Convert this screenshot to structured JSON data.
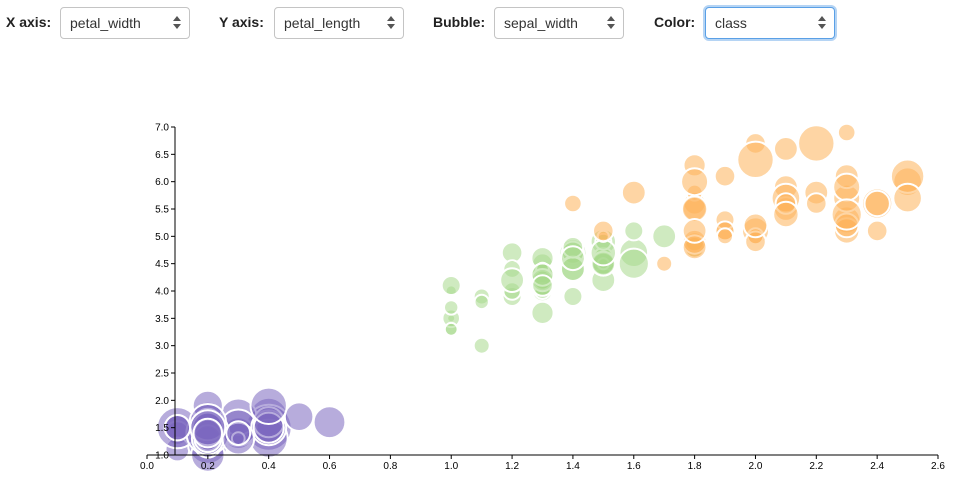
{
  "controls": {
    "x_axis": {
      "label": "X axis:",
      "value": "petal_width"
    },
    "y_axis": {
      "label": "Y axis:",
      "value": "petal_length"
    },
    "bubble": {
      "label": "Bubble:",
      "value": "sepal_width"
    },
    "color": {
      "label": "Color:",
      "value": "class"
    }
  },
  "colors": {
    "setosa": "#7b68c0",
    "versicolor": "#a8d98c",
    "virginica": "#fdb35a",
    "point_stroke": "#ffffff"
  },
  "chart_data": {
    "type": "scatter",
    "title": "",
    "xlabel": "",
    "ylabel": "",
    "xlim": [
      0,
      2.6
    ],
    "ylim": [
      1.0,
      7.0
    ],
    "x_ticks": [
      "0.0",
      "0.2",
      "0.4",
      "0.6",
      "0.8",
      "1.0",
      "1.2",
      "1.4",
      "1.6",
      "1.8",
      "2.0",
      "2.2",
      "2.4",
      "2.6"
    ],
    "y_ticks": [
      "1.0",
      "1.5",
      "2.0",
      "2.5",
      "3.0",
      "3.5",
      "4.0",
      "4.5",
      "5.0",
      "5.5",
      "6.0",
      "6.5",
      "7.0"
    ],
    "grid": false,
    "size_range": [
      2.0,
      4.4
    ],
    "series": [
      {
        "color_key": "setosa",
        "points": [
          [
            0.2,
            1.4,
            3.5
          ],
          [
            0.2,
            1.4,
            3.0
          ],
          [
            0.2,
            1.3,
            3.2
          ],
          [
            0.2,
            1.5,
            3.1
          ],
          [
            0.2,
            1.4,
            3.6
          ],
          [
            0.4,
            1.7,
            3.9
          ],
          [
            0.3,
            1.4,
            3.4
          ],
          [
            0.2,
            1.5,
            3.4
          ],
          [
            0.2,
            1.4,
            2.9
          ],
          [
            0.1,
            1.5,
            3.1
          ],
          [
            0.2,
            1.5,
            3.7
          ],
          [
            0.2,
            1.6,
            3.4
          ],
          [
            0.1,
            1.4,
            3.0
          ],
          [
            0.1,
            1.1,
            3.0
          ],
          [
            0.2,
            1.2,
            4.0
          ],
          [
            0.4,
            1.5,
            4.4
          ],
          [
            0.4,
            1.3,
            3.9
          ],
          [
            0.3,
            1.4,
            3.5
          ],
          [
            0.3,
            1.7,
            3.8
          ],
          [
            0.3,
            1.5,
            3.8
          ],
          [
            0.2,
            1.7,
            3.4
          ],
          [
            0.4,
            1.5,
            3.7
          ],
          [
            0.2,
            1.0,
            3.6
          ],
          [
            0.5,
            1.7,
            3.3
          ],
          [
            0.2,
            1.9,
            3.4
          ],
          [
            0.2,
            1.6,
            3.0
          ],
          [
            0.4,
            1.6,
            3.4
          ],
          [
            0.2,
            1.5,
            3.5
          ],
          [
            0.2,
            1.4,
            3.4
          ],
          [
            0.2,
            1.6,
            3.2
          ],
          [
            0.2,
            1.6,
            3.1
          ],
          [
            0.4,
            1.5,
            3.4
          ],
          [
            0.1,
            1.5,
            4.1
          ],
          [
            0.2,
            1.4,
            4.2
          ],
          [
            0.1,
            1.5,
            3.1
          ],
          [
            0.2,
            1.2,
            3.2
          ],
          [
            0.2,
            1.3,
            3.5
          ],
          [
            0.1,
            1.5,
            3.1
          ],
          [
            0.2,
            1.3,
            3.0
          ],
          [
            0.2,
            1.5,
            3.4
          ],
          [
            0.3,
            1.3,
            3.5
          ],
          [
            0.3,
            1.3,
            2.3
          ],
          [
            0.2,
            1.3,
            3.2
          ],
          [
            0.6,
            1.6,
            3.5
          ],
          [
            0.4,
            1.9,
            3.8
          ],
          [
            0.3,
            1.4,
            3.0
          ],
          [
            0.2,
            1.6,
            3.8
          ],
          [
            0.2,
            1.4,
            3.2
          ],
          [
            0.2,
            1.5,
            3.7
          ],
          [
            0.2,
            1.4,
            3.3
          ]
        ]
      },
      {
        "color_key": "versicolor",
        "points": [
          [
            1.4,
            4.7,
            3.2
          ],
          [
            1.5,
            4.5,
            3.2
          ],
          [
            1.5,
            4.9,
            3.1
          ],
          [
            1.3,
            4.0,
            2.3
          ],
          [
            1.5,
            4.6,
            2.8
          ],
          [
            1.3,
            4.5,
            2.8
          ],
          [
            1.6,
            4.7,
            3.3
          ],
          [
            1.0,
            3.3,
            2.4
          ],
          [
            1.3,
            4.6,
            2.9
          ],
          [
            1.4,
            3.9,
            2.7
          ],
          [
            1.0,
            3.5,
            2.0
          ],
          [
            1.5,
            4.2,
            3.0
          ],
          [
            1.0,
            4.0,
            2.2
          ],
          [
            1.4,
            4.7,
            2.9
          ],
          [
            1.3,
            3.6,
            2.9
          ],
          [
            1.4,
            4.4,
            3.1
          ],
          [
            1.5,
            4.5,
            3.0
          ],
          [
            1.0,
            4.1,
            2.7
          ],
          [
            1.5,
            4.5,
            2.2
          ],
          [
            1.1,
            3.9,
            2.5
          ],
          [
            1.8,
            4.8,
            3.2
          ],
          [
            1.3,
            4.0,
            2.8
          ],
          [
            1.5,
            4.9,
            2.5
          ],
          [
            1.2,
            4.7,
            2.8
          ],
          [
            1.3,
            4.3,
            2.9
          ],
          [
            1.4,
            4.4,
            3.0
          ],
          [
            1.4,
            4.8,
            2.8
          ],
          [
            1.7,
            5.0,
            3.0
          ],
          [
            1.5,
            4.5,
            2.9
          ],
          [
            1.0,
            3.5,
            2.6
          ],
          [
            1.1,
            3.8,
            2.4
          ],
          [
            1.0,
            3.7,
            2.4
          ],
          [
            1.2,
            3.9,
            2.7
          ],
          [
            1.6,
            5.1,
            2.7
          ],
          [
            1.5,
            4.5,
            3.0
          ],
          [
            1.6,
            4.5,
            3.4
          ],
          [
            1.5,
            4.7,
            3.1
          ],
          [
            1.3,
            4.4,
            2.3
          ],
          [
            1.3,
            4.1,
            3.0
          ],
          [
            1.3,
            4.0,
            2.5
          ],
          [
            1.2,
            4.4,
            2.6
          ],
          [
            1.4,
            4.6,
            3.0
          ],
          [
            1.2,
            4.0,
            2.6
          ],
          [
            1.0,
            3.3,
            2.3
          ],
          [
            1.3,
            4.2,
            2.7
          ],
          [
            1.2,
            4.2,
            3.0
          ],
          [
            1.3,
            4.2,
            2.9
          ],
          [
            1.3,
            4.3,
            2.9
          ],
          [
            1.1,
            3.0,
            2.5
          ],
          [
            1.3,
            4.1,
            2.8
          ]
        ]
      },
      {
        "color_key": "virginica",
        "points": [
          [
            2.5,
            6.0,
            3.3
          ],
          [
            1.9,
            5.1,
            2.7
          ],
          [
            2.1,
            5.9,
            3.0
          ],
          [
            1.8,
            5.6,
            2.9
          ],
          [
            2.2,
            5.8,
            3.0
          ],
          [
            2.1,
            6.6,
            3.0
          ],
          [
            1.7,
            4.5,
            2.5
          ],
          [
            1.8,
            6.3,
            2.9
          ],
          [
            1.8,
            5.8,
            2.5
          ],
          [
            2.5,
            6.1,
            3.6
          ],
          [
            2.0,
            5.1,
            3.2
          ],
          [
            1.9,
            5.3,
            2.7
          ],
          [
            2.1,
            5.5,
            3.0
          ],
          [
            2.0,
            5.0,
            2.5
          ],
          [
            2.4,
            5.1,
            2.8
          ],
          [
            2.3,
            5.3,
            3.2
          ],
          [
            1.8,
            5.5,
            3.0
          ],
          [
            2.2,
            6.7,
            3.8
          ],
          [
            2.3,
            6.9,
            2.6
          ],
          [
            1.5,
            5.0,
            2.2
          ],
          [
            2.3,
            5.7,
            3.2
          ],
          [
            2.0,
            4.9,
            2.8
          ],
          [
            2.0,
            6.7,
            2.8
          ],
          [
            1.8,
            4.9,
            2.7
          ],
          [
            2.1,
            5.7,
            3.3
          ],
          [
            1.8,
            6.0,
            3.2
          ],
          [
            1.8,
            4.8,
            2.8
          ],
          [
            1.8,
            4.9,
            3.0
          ],
          [
            2.1,
            5.6,
            2.8
          ],
          [
            1.6,
            5.8,
            3.0
          ],
          [
            1.9,
            6.1,
            2.8
          ],
          [
            2.0,
            6.4,
            3.8
          ],
          [
            2.2,
            5.6,
            2.8
          ],
          [
            1.5,
            5.1,
            2.8
          ],
          [
            1.4,
            5.6,
            2.6
          ],
          [
            2.3,
            6.1,
            3.0
          ],
          [
            2.4,
            5.6,
            3.4
          ],
          [
            1.8,
            5.5,
            3.1
          ],
          [
            1.8,
            4.8,
            3.0
          ],
          [
            2.1,
            5.4,
            3.1
          ],
          [
            2.4,
            5.6,
            3.1
          ],
          [
            2.3,
            5.1,
            3.1
          ],
          [
            1.9,
            5.1,
            2.7
          ],
          [
            2.3,
            5.9,
            3.2
          ],
          [
            2.5,
            5.7,
            3.3
          ],
          [
            2.3,
            5.2,
            3.0
          ],
          [
            1.9,
            5.0,
            2.5
          ],
          [
            2.0,
            5.2,
            3.0
          ],
          [
            2.3,
            5.4,
            3.4
          ],
          [
            1.8,
            5.1,
            3.0
          ]
        ]
      }
    ]
  }
}
